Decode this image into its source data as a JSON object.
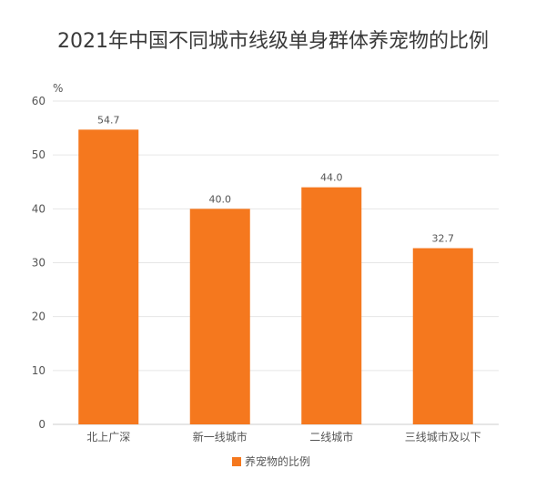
{
  "chart_data": {
    "type": "bar",
    "title": "2021年中国不同城市线级单身群体养宠物的比例",
    "unit": "%",
    "categories": [
      "北上广深",
      "新一线城市",
      "二线城市",
      "三线城市及以下"
    ],
    "series": [
      {
        "name": "养宠物的比例",
        "values": [
          54.7,
          40.0,
          44.0,
          32.7
        ],
        "labels": [
          "54.7",
          "40.0",
          "44.0",
          "32.7"
        ]
      }
    ],
    "yticks": [
      "0",
      "10",
      "20",
      "30",
      "40",
      "50",
      "60"
    ],
    "ylim": [
      0,
      60
    ],
    "grid": true,
    "legend": "bottom",
    "colors": {
      "bar": "#F5781E",
      "grid": "#e6e6e6",
      "axis": "#cccccc"
    }
  }
}
